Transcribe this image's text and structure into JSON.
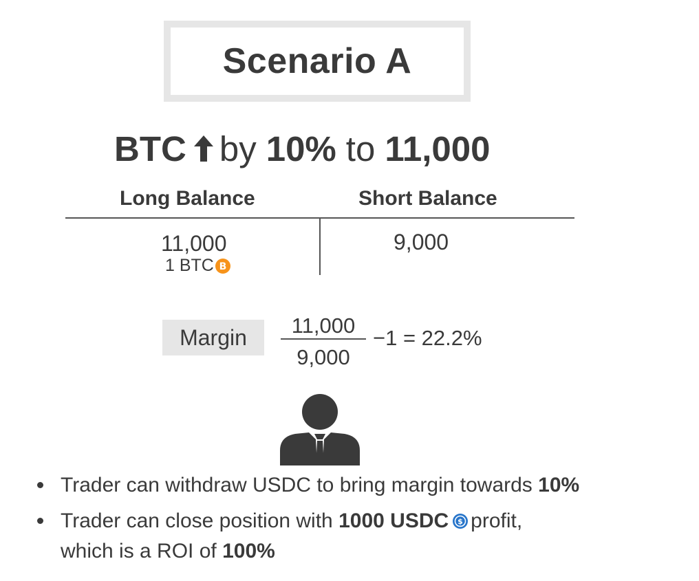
{
  "title": "Scenario A",
  "headline": {
    "asset": "BTC",
    "direction_icon": "arrow-up-icon",
    "by_text": "by",
    "percent": "10%",
    "to_text": "to",
    "target": "11,000"
  },
  "table": {
    "long_header": "Long Balance",
    "short_header": "Short Balance",
    "long_value": "11,000",
    "long_sub": "1 BTC",
    "short_value": "9,000"
  },
  "formula": {
    "label": "Margin",
    "numerator": "11,000",
    "denominator": "9,000",
    "rest": "−1 = 22.2%"
  },
  "bullets": {
    "b1_text": "Trader can withdraw USDC to bring margin towards ",
    "b1_bold": "10%",
    "b2_text_a": "Trader can close position with ",
    "b2_bold_a": "1000 USDC",
    "b2_text_b": "profit,",
    "b2_text_c": "which is a ROI of ",
    "b2_bold_b": "100%"
  },
  "colors": {
    "text": "#3a3a3a",
    "box_gray": "#e6e6e6",
    "btc_orange": "#f7931a",
    "usdc_blue": "#2775ca"
  }
}
